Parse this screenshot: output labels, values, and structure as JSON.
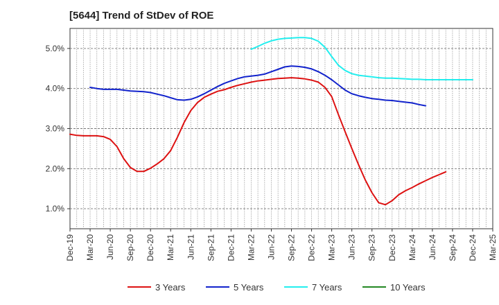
{
  "chart_data": {
    "type": "line",
    "title": "[5644]  Trend of StDev of ROE",
    "xlabel": "",
    "ylabel": "",
    "x_tick_labels": [
      "Dec-19",
      "Mar-20",
      "Jun-20",
      "Sep-20",
      "Dec-20",
      "Mar-21",
      "Jun-21",
      "Sep-21",
      "Dec-21",
      "Mar-22",
      "Jun-22",
      "Sep-22",
      "Dec-22",
      "Mar-23",
      "Jun-23",
      "Sep-23",
      "Dec-23",
      "Mar-24",
      "Jun-24",
      "Sep-24",
      "Dec-24",
      "Mar-25"
    ],
    "y_tick_labels": [
      "1.0%",
      "2.0%",
      "3.0%",
      "4.0%",
      "5.0%"
    ],
    "y_tick_values": [
      1.0,
      2.0,
      3.0,
      4.0,
      5.0
    ],
    "ylim": [
      0.5,
      5.5
    ],
    "grid": true,
    "legend_position": "bottom",
    "series": [
      {
        "name": "3 Years",
        "color": "#dd1111",
        "points": [
          [
            "Dec-19",
            2.86
          ],
          [
            "Jan-20",
            2.83
          ],
          [
            "Feb-20",
            2.82
          ],
          [
            "Mar-20",
            2.82
          ],
          [
            "Apr-20",
            2.82
          ],
          [
            "May-20",
            2.8
          ],
          [
            "Jun-20",
            2.73
          ],
          [
            "Jul-20",
            2.55
          ],
          [
            "Aug-20",
            2.25
          ],
          [
            "Sep-20",
            2.03
          ],
          [
            "Oct-20",
            1.93
          ],
          [
            "Nov-20",
            1.93
          ],
          [
            "Dec-20",
            2.01
          ],
          [
            "Jan-21",
            2.12
          ],
          [
            "Feb-21",
            2.25
          ],
          [
            "Mar-21",
            2.45
          ],
          [
            "Apr-21",
            2.78
          ],
          [
            "May-21",
            3.15
          ],
          [
            "Jun-21",
            3.45
          ],
          [
            "Jul-21",
            3.65
          ],
          [
            "Aug-21",
            3.78
          ],
          [
            "Sep-21",
            3.86
          ],
          [
            "Oct-21",
            3.93
          ],
          [
            "Nov-21",
            3.97
          ],
          [
            "Dec-21",
            4.03
          ],
          [
            "Jan-22",
            4.08
          ],
          [
            "Feb-22",
            4.12
          ],
          [
            "Mar-22",
            4.16
          ],
          [
            "Apr-22",
            4.19
          ],
          [
            "May-22",
            4.21
          ],
          [
            "Jun-22",
            4.23
          ],
          [
            "Jul-22",
            4.25
          ],
          [
            "Aug-22",
            4.26
          ],
          [
            "Sep-22",
            4.27
          ],
          [
            "Oct-22",
            4.26
          ],
          [
            "Nov-22",
            4.24
          ],
          [
            "Dec-22",
            4.21
          ],
          [
            "Jan-23",
            4.16
          ],
          [
            "Feb-23",
            4.03
          ],
          [
            "Mar-23",
            3.8
          ],
          [
            "Apr-23",
            3.35
          ],
          [
            "May-23",
            2.92
          ],
          [
            "Jun-23",
            2.5
          ],
          [
            "Jul-23",
            2.1
          ],
          [
            "Aug-23",
            1.72
          ],
          [
            "Sep-23",
            1.4
          ],
          [
            "Oct-23",
            1.15
          ],
          [
            "Nov-23",
            1.1
          ],
          [
            "Dec-23",
            1.2
          ],
          [
            "Jan-24",
            1.35
          ],
          [
            "Feb-24",
            1.45
          ],
          [
            "Mar-24",
            1.53
          ],
          [
            "Apr-24",
            1.62
          ],
          [
            "May-24",
            1.7
          ],
          [
            "Jun-24",
            1.78
          ],
          [
            "Jul-24",
            1.85
          ],
          [
            "Aug-24",
            1.92
          ]
        ]
      },
      {
        "name": "5 Years",
        "color": "#1122cc",
        "points": [
          [
            "Mar-20",
            4.03
          ],
          [
            "Apr-20",
            4.0
          ],
          [
            "May-20",
            3.98
          ],
          [
            "Jun-20",
            3.98
          ],
          [
            "Jul-20",
            3.98
          ],
          [
            "Aug-20",
            3.96
          ],
          [
            "Sep-20",
            3.94
          ],
          [
            "Oct-20",
            3.93
          ],
          [
            "Nov-20",
            3.92
          ],
          [
            "Dec-20",
            3.9
          ],
          [
            "Jan-21",
            3.86
          ],
          [
            "Feb-21",
            3.82
          ],
          [
            "Mar-21",
            3.77
          ],
          [
            "Apr-21",
            3.72
          ],
          [
            "May-21",
            3.71
          ],
          [
            "Jun-21",
            3.73
          ],
          [
            "Jul-21",
            3.79
          ],
          [
            "Aug-21",
            3.87
          ],
          [
            "Sep-21",
            3.96
          ],
          [
            "Oct-21",
            4.05
          ],
          [
            "Nov-21",
            4.13
          ],
          [
            "Dec-21",
            4.19
          ],
          [
            "Jan-22",
            4.25
          ],
          [
            "Feb-22",
            4.29
          ],
          [
            "Mar-22",
            4.31
          ],
          [
            "Apr-22",
            4.33
          ],
          [
            "May-22",
            4.36
          ],
          [
            "Jun-22",
            4.42
          ],
          [
            "Jul-22",
            4.48
          ],
          [
            "Aug-22",
            4.54
          ],
          [
            "Sep-22",
            4.56
          ],
          [
            "Oct-22",
            4.55
          ],
          [
            "Nov-22",
            4.53
          ],
          [
            "Dec-22",
            4.49
          ],
          [
            "Jan-23",
            4.42
          ],
          [
            "Feb-23",
            4.33
          ],
          [
            "Mar-23",
            4.22
          ],
          [
            "Apr-23",
            4.09
          ],
          [
            "May-23",
            3.96
          ],
          [
            "Jun-23",
            3.87
          ],
          [
            "Jul-23",
            3.82
          ],
          [
            "Aug-23",
            3.78
          ],
          [
            "Sep-23",
            3.75
          ],
          [
            "Oct-23",
            3.73
          ],
          [
            "Nov-23",
            3.71
          ],
          [
            "Dec-23",
            3.7
          ],
          [
            "Jan-24",
            3.68
          ],
          [
            "Feb-24",
            3.66
          ],
          [
            "Mar-24",
            3.64
          ],
          [
            "Apr-24",
            3.6
          ],
          [
            "May-24",
            3.57
          ]
        ]
      },
      {
        "name": "7 Years",
        "color": "#22eeee",
        "points": [
          [
            "Mar-22",
            4.98
          ],
          [
            "Apr-22",
            5.05
          ],
          [
            "May-22",
            5.13
          ],
          [
            "Jun-22",
            5.19
          ],
          [
            "Jul-22",
            5.23
          ],
          [
            "Aug-22",
            5.25
          ],
          [
            "Sep-22",
            5.26
          ],
          [
            "Oct-22",
            5.27
          ],
          [
            "Nov-22",
            5.27
          ],
          [
            "Dec-22",
            5.25
          ],
          [
            "Jan-23",
            5.18
          ],
          [
            "Feb-23",
            5.03
          ],
          [
            "Mar-23",
            4.8
          ],
          [
            "Apr-23",
            4.58
          ],
          [
            "May-23",
            4.45
          ],
          [
            "Jun-23",
            4.37
          ],
          [
            "Jul-23",
            4.33
          ],
          [
            "Aug-23",
            4.31
          ],
          [
            "Sep-23",
            4.29
          ],
          [
            "Oct-23",
            4.27
          ],
          [
            "Nov-23",
            4.26
          ],
          [
            "Dec-23",
            4.26
          ],
          [
            "Jan-24",
            4.25
          ],
          [
            "Feb-24",
            4.24
          ],
          [
            "Mar-24",
            4.23
          ],
          [
            "Apr-24",
            4.23
          ],
          [
            "May-24",
            4.22
          ],
          [
            "Jun-24",
            4.22
          ],
          [
            "Jul-24",
            4.22
          ],
          [
            "Aug-24",
            4.22
          ],
          [
            "Sep-24",
            4.22
          ],
          [
            "Oct-24",
            4.22
          ],
          [
            "Nov-24",
            4.22
          ],
          [
            "Dec-24",
            4.22
          ]
        ]
      },
      {
        "name": "10 Years",
        "color": "#228822",
        "points": []
      }
    ]
  }
}
